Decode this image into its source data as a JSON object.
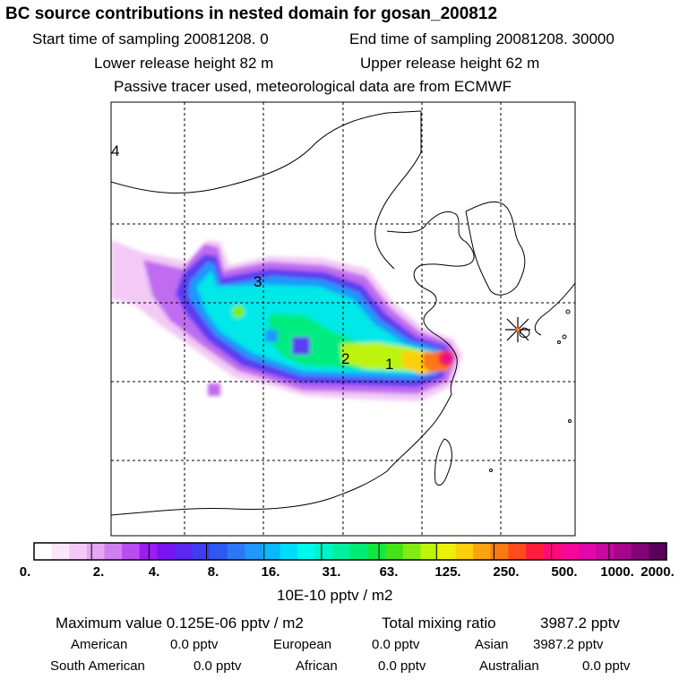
{
  "header": {
    "title": "BC  source contributions in nested domain for gosan_200812",
    "start_sampling": "Start time of sampling 20081208.     0",
    "end_sampling": "End time of sampling 20081208. 30000",
    "lower_release": "Lower release height   82 m",
    "upper_release": "Upper release height   62 m",
    "tracer_note": "Passive tracer used, meteorological data are from ECMWF"
  },
  "map": {
    "region_labels": [
      "1",
      "2",
      "3",
      "4"
    ],
    "receptor_marker": "asterisk-marker"
  },
  "colorbar": {
    "tick_labels": [
      "0.",
      "2.",
      "4.",
      "8.",
      "16.",
      "31.",
      "63.",
      "125.",
      "250.",
      "500.",
      "1000.",
      "2000."
    ],
    "colors": [
      "#ffffff",
      "#fbe6fb",
      "#f3caf5",
      "#e6a6f0",
      "#d07ff0",
      "#b84df0",
      "#9a1ef0",
      "#7a14f0",
      "#5a28f0",
      "#3f3cf2",
      "#2e58f4",
      "#2a78f8",
      "#1e98fb",
      "#0ab8fd",
      "#00dcfc",
      "#00f8ee",
      "#00f4c8",
      "#00f09e",
      "#00ec72",
      "#10e840",
      "#42e418",
      "#80ec10",
      "#bcf40c",
      "#eef00c",
      "#fcd00c",
      "#fca20c",
      "#fc7812",
      "#fc4c1e",
      "#fc1e3c",
      "#fc0a78",
      "#f4089a",
      "#e008a8",
      "#c806a0",
      "#a8048c",
      "#840276",
      "#5a005a"
    ],
    "units": "10E-10 pptv / m2"
  },
  "stats": {
    "max_label": "Maximum value  0.125E-06 pptv / m2",
    "total_label": "Total mixing ratio",
    "total_value": "3987.2 pptv",
    "regions": [
      {
        "name": "American",
        "value": "0.0 pptv"
      },
      {
        "name": "European",
        "value": "0.0 pptv"
      },
      {
        "name": "Asian",
        "value": "3987.2 pptv"
      },
      {
        "name": "South American",
        "value": "0.0 pptv"
      },
      {
        "name": "African",
        "value": "0.0 pptv"
      },
      {
        "name": "Australian",
        "value": "0.0 pptv"
      }
    ]
  }
}
